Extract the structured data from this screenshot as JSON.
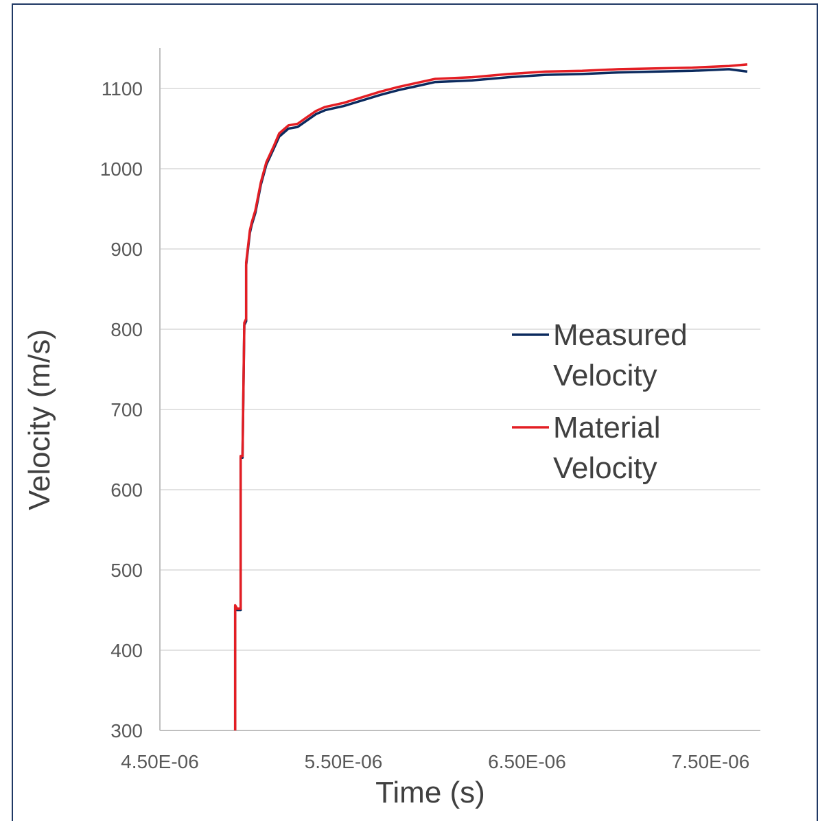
{
  "chart_data": {
    "type": "line",
    "title": "",
    "xlabel": "Time (s)",
    "ylabel": "Velocity (m/s)",
    "xlim": [
      4.5e-06,
      7.75e-06
    ],
    "ylim": [
      300,
      1150
    ],
    "x_ticks": [
      4.5e-06,
      5.5e-06,
      6.5e-06,
      7.5e-06
    ],
    "x_tick_labels": [
      "4.50E-06",
      "5.50E-06",
      "6.50E-06",
      "7.50E-06"
    ],
    "y_ticks": [
      300,
      400,
      500,
      600,
      700,
      800,
      900,
      1000,
      1100
    ],
    "y_tick_labels": [
      "300",
      "400",
      "500",
      "600",
      "700",
      "800",
      "900",
      "1000",
      "1100"
    ],
    "grid": "horizontal",
    "legend": "right",
    "series": [
      {
        "name": "Measured Velocity",
        "color": "#0b2a5e",
        "x": [
          4.91e-06,
          4.91e-06,
          4.92e-06,
          4.94e-06,
          4.94e-06,
          4.95e-06,
          4.96e-06,
          4.97e-06,
          4.97e-06,
          4.99e-06,
          5e-06,
          5.02e-06,
          5.05e-06,
          5.08e-06,
          5.1e-06,
          5.12e-06,
          5.15e-06,
          5.2e-06,
          5.25e-06,
          5.3e-06,
          5.35e-06,
          5.4e-06,
          5.5e-06,
          5.6e-06,
          5.7e-06,
          5.8e-06,
          5.9e-06,
          6e-06,
          6.2e-06,
          6.4e-06,
          6.6e-06,
          6.8e-06,
          7e-06,
          7.2e-06,
          7.4e-06,
          7.6e-06,
          7.7e-06
        ],
        "y": [
          300,
          455,
          450,
          450,
          640,
          640,
          805,
          810,
          880,
          920,
          930,
          945,
          980,
          1005,
          1015,
          1025,
          1040,
          1050,
          1052,
          1060,
          1068,
          1073,
          1078,
          1085,
          1092,
          1098,
          1103,
          1108,
          1110,
          1114,
          1117,
          1118,
          1120,
          1121,
          1122,
          1124,
          1121
        ]
      },
      {
        "name": "Material Velocity",
        "color": "#e31e24",
        "x": [
          4.91e-06,
          4.91e-06,
          4.92e-06,
          4.94e-06,
          4.94e-06,
          4.95e-06,
          4.96e-06,
          4.97e-06,
          4.97e-06,
          4.99e-06,
          5e-06,
          5.02e-06,
          5.05e-06,
          5.08e-06,
          5.1e-06,
          5.12e-06,
          5.15e-06,
          5.2e-06,
          5.25e-06,
          5.3e-06,
          5.35e-06,
          5.4e-06,
          5.5e-06,
          5.6e-06,
          5.7e-06,
          5.8e-06,
          5.9e-06,
          6e-06,
          6.2e-06,
          6.4e-06,
          6.6e-06,
          6.8e-06,
          7e-06,
          7.2e-06,
          7.4e-06,
          7.6e-06,
          7.7e-06
        ],
        "y": [
          300,
          456,
          452,
          452,
          642,
          642,
          808,
          813,
          883,
          923,
          933,
          948,
          983,
          1008,
          1018,
          1028,
          1044,
          1054,
          1056,
          1064,
          1072,
          1077,
          1082,
          1089,
          1096,
          1102,
          1107,
          1112,
          1114,
          1118,
          1121,
          1122,
          1124,
          1125,
          1126,
          1128,
          1130
        ]
      }
    ]
  }
}
